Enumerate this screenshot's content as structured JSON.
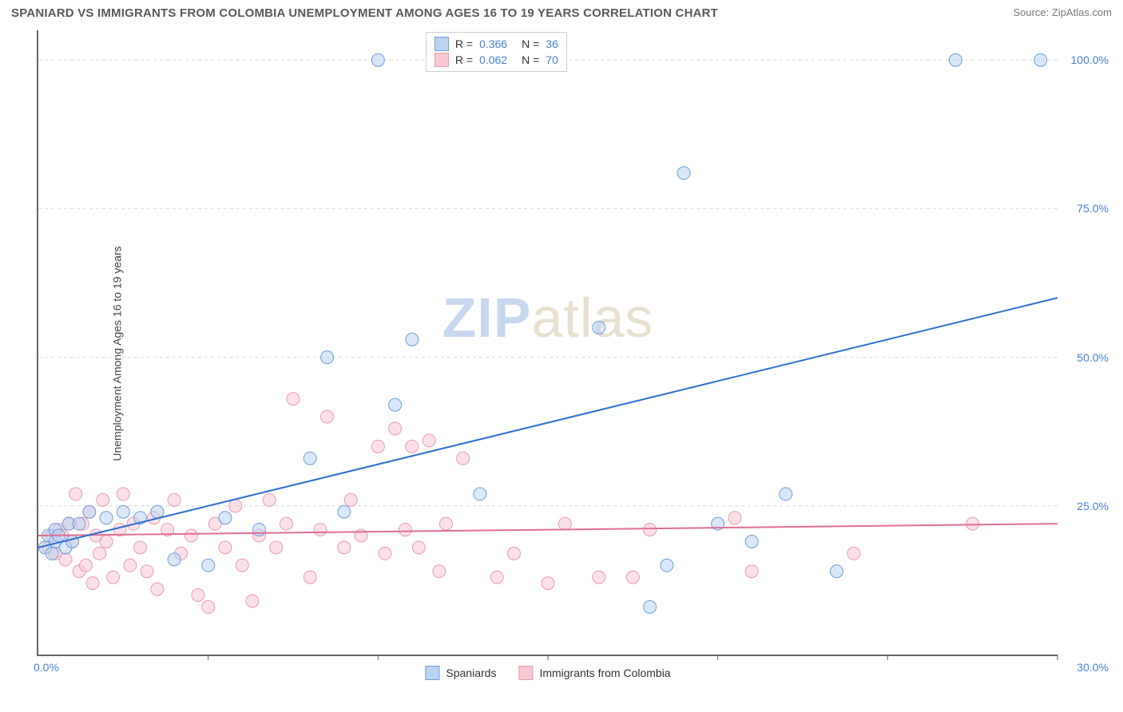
{
  "title": "SPANIARD VS IMMIGRANTS FROM COLOMBIA UNEMPLOYMENT AMONG AGES 16 TO 19 YEARS CORRELATION CHART",
  "source": "Source: ZipAtlas.com",
  "y_axis_title": "Unemployment Among Ages 16 to 19 years",
  "watermark": {
    "part1": "ZIP",
    "part2": "atlas",
    "color1": "#c9d7ee",
    "color2": "#e7e0d0"
  },
  "colors": {
    "title": "#5a5a5a",
    "axis_label": "#4a7fd6",
    "grid": "#d9d9d9",
    "axis_line": "#666666",
    "blue_fill": "#bcd4f0",
    "blue_stroke": "#6f9edb",
    "blue_line": "#2e6fd1",
    "pink_fill": "#f6c9d3",
    "pink_stroke": "#e89bb0",
    "pink_line": "#e06f93"
  },
  "chart": {
    "type": "scatter",
    "xlim": [
      0,
      30
    ],
    "ylim": [
      0,
      105
    ],
    "x_ticks": [
      0,
      5,
      10,
      15,
      20,
      25,
      30
    ],
    "y_gridlines": [
      25,
      50,
      75,
      100
    ],
    "x_label_min": "0.0%",
    "x_label_max": "30.0%",
    "y_tick_labels": [
      "25.0%",
      "50.0%",
      "75.0%",
      "100.0%"
    ],
    "marker_radius": 8,
    "marker_opacity": 0.55,
    "line_width": 2
  },
  "series": {
    "blue": {
      "name": "Spaniards",
      "R": "0.366",
      "N": "36",
      "trend": {
        "x1": 0,
        "y1": 18,
        "x2": 30,
        "y2": 60
      },
      "points": [
        [
          0.2,
          18
        ],
        [
          0.3,
          20
        ],
        [
          0.4,
          17
        ],
        [
          0.5,
          21
        ],
        [
          0.5,
          19
        ],
        [
          0.6,
          20
        ],
        [
          0.8,
          18
        ],
        [
          0.9,
          22
        ],
        [
          1.0,
          19
        ],
        [
          1.2,
          22
        ],
        [
          1.5,
          24
        ],
        [
          2.0,
          23
        ],
        [
          2.5,
          24
        ],
        [
          3.0,
          23
        ],
        [
          3.5,
          24
        ],
        [
          4.0,
          16
        ],
        [
          5.0,
          15
        ],
        [
          5.5,
          23
        ],
        [
          6.5,
          21
        ],
        [
          8.0,
          33
        ],
        [
          8.5,
          50
        ],
        [
          9.0,
          24
        ],
        [
          10.0,
          100
        ],
        [
          10.5,
          42
        ],
        [
          11.0,
          53
        ],
        [
          13.0,
          27
        ],
        [
          16.5,
          55
        ],
        [
          18.0,
          8
        ],
        [
          18.5,
          15
        ],
        [
          19.0,
          81
        ],
        [
          20.0,
          22
        ],
        [
          21.0,
          19
        ],
        [
          22.0,
          27
        ],
        [
          23.5,
          14
        ],
        [
          27.0,
          100
        ],
        [
          29.5,
          100
        ]
      ]
    },
    "pink": {
      "name": "Immigrants from Colombia",
      "R": "0.062",
      "N": "70",
      "trend": {
        "x1": 0,
        "y1": 20,
        "x2": 30,
        "y2": 22
      },
      "points": [
        [
          0.3,
          18
        ],
        [
          0.4,
          20
        ],
        [
          0.5,
          17
        ],
        [
          0.6,
          21
        ],
        [
          0.7,
          20
        ],
        [
          0.8,
          16
        ],
        [
          0.9,
          22
        ],
        [
          1.0,
          19
        ],
        [
          1.1,
          27
        ],
        [
          1.2,
          14
        ],
        [
          1.3,
          22
        ],
        [
          1.4,
          15
        ],
        [
          1.5,
          24
        ],
        [
          1.6,
          12
        ],
        [
          1.7,
          20
        ],
        [
          1.8,
          17
        ],
        [
          1.9,
          26
        ],
        [
          2.0,
          19
        ],
        [
          2.2,
          13
        ],
        [
          2.4,
          21
        ],
        [
          2.5,
          27
        ],
        [
          2.7,
          15
        ],
        [
          2.8,
          22
        ],
        [
          3.0,
          18
        ],
        [
          3.2,
          14
        ],
        [
          3.4,
          23
        ],
        [
          3.5,
          11
        ],
        [
          3.8,
          21
        ],
        [
          4.0,
          26
        ],
        [
          4.2,
          17
        ],
        [
          4.5,
          20
        ],
        [
          4.7,
          10
        ],
        [
          5.0,
          8
        ],
        [
          5.2,
          22
        ],
        [
          5.5,
          18
        ],
        [
          5.8,
          25
        ],
        [
          6.0,
          15
        ],
        [
          6.3,
          9
        ],
        [
          6.5,
          20
        ],
        [
          6.8,
          26
        ],
        [
          7.0,
          18
        ],
        [
          7.3,
          22
        ],
        [
          7.5,
          43
        ],
        [
          8.0,
          13
        ],
        [
          8.3,
          21
        ],
        [
          8.5,
          40
        ],
        [
          9.0,
          18
        ],
        [
          9.2,
          26
        ],
        [
          9.5,
          20
        ],
        [
          10.0,
          35
        ],
        [
          10.2,
          17
        ],
        [
          10.5,
          38
        ],
        [
          10.8,
          21
        ],
        [
          11.0,
          35
        ],
        [
          11.2,
          18
        ],
        [
          11.5,
          36
        ],
        [
          11.8,
          14
        ],
        [
          12.0,
          22
        ],
        [
          12.5,
          33
        ],
        [
          13.5,
          13
        ],
        [
          14.0,
          17
        ],
        [
          15.0,
          12
        ],
        [
          15.5,
          22
        ],
        [
          16.5,
          13
        ],
        [
          17.5,
          13
        ],
        [
          18.0,
          21
        ],
        [
          20.5,
          23
        ],
        [
          21.0,
          14
        ],
        [
          24.0,
          17
        ],
        [
          27.5,
          22
        ]
      ]
    }
  },
  "legend_bottom": {
    "blue_label": "Spaniards",
    "pink_label": "Immigrants from Colombia"
  }
}
